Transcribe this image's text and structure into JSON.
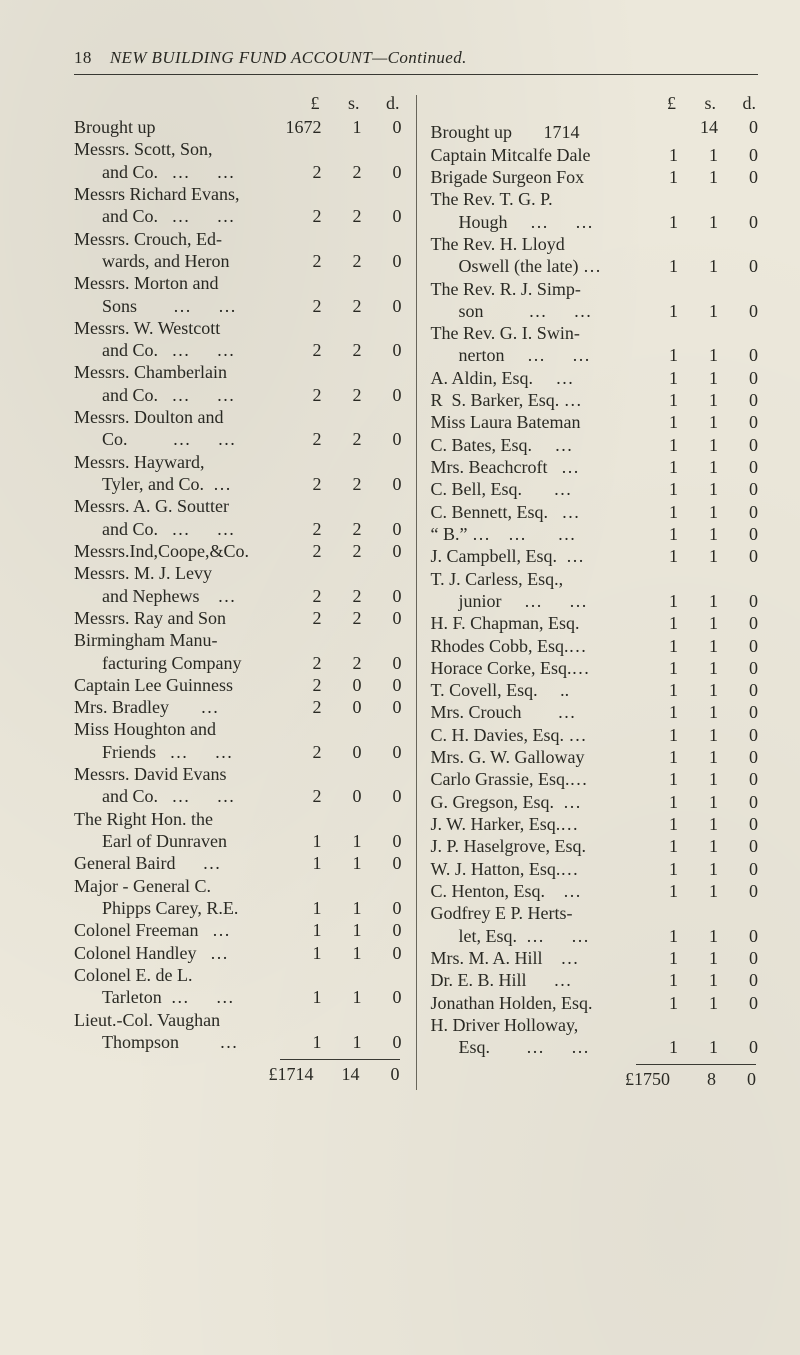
{
  "page_bg": "#ece8db",
  "text_color": "#2a2a24",
  "rule_color": "#3a3a34",
  "header": {
    "page_number": "18",
    "title_html": "NEW BUILDING FUND ACCOUNT—Continued."
  },
  "amount_header": {
    "pound": "£",
    "s": "s.",
    "d": "d."
  },
  "left": {
    "entries": [
      {
        "label": "Brought up",
        "pound": "1672",
        "s": "1",
        "d": "0"
      },
      {
        "cont": "Messrs. Scott, Son,"
      },
      {
        "label": "  and Co.   …      …",
        "pound": "2",
        "s": "2",
        "d": "0"
      },
      {
        "cont": "Messrs Richard Evans,"
      },
      {
        "label": "  and Co.   …      …",
        "pound": "2",
        "s": "2",
        "d": "0"
      },
      {
        "cont": "Messrs.  Crouch, Ed-"
      },
      {
        "label": "  wards, and Heron",
        "pound": "2",
        "s": "2",
        "d": "0"
      },
      {
        "cont": "Messrs. Morton and"
      },
      {
        "label": "  Sons        …      …",
        "pound": "2",
        "s": "2",
        "d": "0"
      },
      {
        "cont": "Messrs. W. Westcott"
      },
      {
        "label": "  and Co.   …      …",
        "pound": "2",
        "s": "2",
        "d": "0"
      },
      {
        "cont": "Messrs. Chamberlain"
      },
      {
        "label": "  and Co.   …      …",
        "pound": "2",
        "s": "2",
        "d": "0"
      },
      {
        "cont": "Messrs. Doulton and"
      },
      {
        "label": "  Co.          …      …",
        "pound": "2",
        "s": "2",
        "d": "0"
      },
      {
        "cont": "Messrs.     Hayward,"
      },
      {
        "label": "  Tyler, and Co.  …",
        "pound": "2",
        "s": "2",
        "d": "0"
      },
      {
        "cont": "Messrs. A. G. Soutter"
      },
      {
        "label": "  and Co.   …      …",
        "pound": "2",
        "s": "2",
        "d": "0"
      },
      {
        "label": "Messrs.Ind,Coope,&Co.",
        "pound": "2",
        "s": "2",
        "d": "0"
      },
      {
        "cont": "Messrs. M. J. Levy"
      },
      {
        "label": "  and Nephews    …",
        "pound": "2",
        "s": "2",
        "d": "0"
      },
      {
        "label": "Messrs. Ray and Son",
        "pound": "2",
        "s": "2",
        "d": "0"
      },
      {
        "cont": "Birmingham   Manu-"
      },
      {
        "label": "  facturing Company",
        "pound": "2",
        "s": "2",
        "d": "0"
      },
      {
        "label": "Captain Lee Guinness",
        "pound": "2",
        "s": "0",
        "d": "0"
      },
      {
        "label": "Mrs. Bradley       …",
        "pound": "2",
        "s": "0",
        "d": "0"
      },
      {
        "cont": "Miss Houghton  and"
      },
      {
        "label": "  Friends   …      …",
        "pound": "2",
        "s": "0",
        "d": "0"
      },
      {
        "cont": "Messrs. David Evans"
      },
      {
        "label": "  and Co.   …      …",
        "pound": "2",
        "s": "0",
        "d": "0"
      },
      {
        "cont": "The Right Hon. the"
      },
      {
        "label": "  Earl of Dunraven",
        "pound": "1",
        "s": "1",
        "d": "0"
      },
      {
        "label": "General Baird      …",
        "pound": "1",
        "s": "1",
        "d": "0"
      },
      {
        "cont": "Major - General   C."
      },
      {
        "label": "  Phipps Carey, R.E.",
        "pound": "1",
        "s": "1",
        "d": "0"
      },
      {
        "label": "Colonel Freeman   …",
        "pound": "1",
        "s": "1",
        "d": "0"
      },
      {
        "label": "Colonel Handley   …",
        "pound": "1",
        "s": "1",
        "d": "0"
      },
      {
        "cont": "Colonel  E.  de  L."
      },
      {
        "label": "  Tarleton  …      …",
        "pound": "1",
        "s": "1",
        "d": "0"
      },
      {
        "cont": "Lieut.-Col. Vaughan"
      },
      {
        "label": "  Thompson         …",
        "pound": "1",
        "s": "1",
        "d": "0"
      }
    ],
    "total": {
      "label": "£1714",
      "s": "14",
      "d": "0"
    }
  },
  "right": {
    "entries": [
      {
        "label": "Brought up       1714",
        "pound": "",
        "s": "14",
        "d": "0",
        "pound_in_label": true
      },
      {
        "label": "Captain Mitcalfe Dale",
        "pound": "1",
        "s": "1",
        "d": "0"
      },
      {
        "label": "Brigade Surgeon Fox",
        "pound": "1",
        "s": "1",
        "d": "0"
      },
      {
        "cont": "The Rev. T. G. P."
      },
      {
        "label": "  Hough     …      …",
        "pound": "1",
        "s": "1",
        "d": "0"
      },
      {
        "cont": "The Rev. H. Lloyd"
      },
      {
        "label": "  Oswell (the late) …",
        "pound": "1",
        "s": "1",
        "d": "0"
      },
      {
        "cont": "The Rev. R. J. Simp-"
      },
      {
        "label": "  son          …      …",
        "pound": "1",
        "s": "1",
        "d": "0"
      },
      {
        "cont": "The Rev. G. I. Swin-"
      },
      {
        "label": "  nerton     …      …",
        "pound": "1",
        "s": "1",
        "d": "0"
      },
      {
        "label": "A. Aldin, Esq.     …",
        "pound": "1",
        "s": "1",
        "d": "0"
      },
      {
        "label": "R  S. Barker, Esq. …",
        "pound": "1",
        "s": "1",
        "d": "0"
      },
      {
        "label": "Miss Laura Bateman",
        "pound": "1",
        "s": "1",
        "d": "0"
      },
      {
        "label": "C. Bates, Esq.     …",
        "pound": "1",
        "s": "1",
        "d": "0"
      },
      {
        "label": "Mrs. Beachcroft   …",
        "pound": "1",
        "s": "1",
        "d": "0"
      },
      {
        "label": "C. Bell, Esq.       …",
        "pound": "1",
        "s": "1",
        "d": "0"
      },
      {
        "label": "C. Bennett, Esq.   …",
        "pound": "1",
        "s": "1",
        "d": "0"
      },
      {
        "label": "“ B.” …    …       …",
        "pound": "1",
        "s": "1",
        "d": "0"
      },
      {
        "label": "J. Campbell, Esq.  …",
        "pound": "1",
        "s": "1",
        "d": "0"
      },
      {
        "cont": "T. J. Carless, Esq.,"
      },
      {
        "label": "  junior     …      …",
        "pound": "1",
        "s": "1",
        "d": "0"
      },
      {
        "label": "H. F. Chapman, Esq.",
        "pound": "1",
        "s": "1",
        "d": "0"
      },
      {
        "label": "Rhodes Cobb, Esq.…",
        "pound": "1",
        "s": "1",
        "d": "0"
      },
      {
        "label": "Horace Corke, Esq.…",
        "pound": "1",
        "s": "1",
        "d": "0"
      },
      {
        "label": "T. Covell, Esq.     ..",
        "pound": "1",
        "s": "1",
        "d": "0"
      },
      {
        "label": "Mrs. Crouch        …",
        "pound": "1",
        "s": "1",
        "d": "0"
      },
      {
        "label": "C. H. Davies, Esq. …",
        "pound": "1",
        "s": "1",
        "d": "0"
      },
      {
        "label": "Mrs. G. W. Galloway",
        "pound": "1",
        "s": "1",
        "d": "0"
      },
      {
        "label": "Carlo Grassie, Esq.…",
        "pound": "1",
        "s": "1",
        "d": "0"
      },
      {
        "label": "G. Gregson, Esq.  …",
        "pound": "1",
        "s": "1",
        "d": "0"
      },
      {
        "label": "J. W. Harker, Esq.…",
        "pound": "1",
        "s": "1",
        "d": "0"
      },
      {
        "label": "J. P. Haselgrove, Esq.",
        "pound": "1",
        "s": "1",
        "d": "0"
      },
      {
        "label": "W. J. Hatton, Esq.…",
        "pound": "1",
        "s": "1",
        "d": "0"
      },
      {
        "label": "C. Henton, Esq.    …",
        "pound": "1",
        "s": "1",
        "d": "0"
      },
      {
        "cont": "Godfrey E P. Herts-"
      },
      {
        "label": "  let, Esq.  …      …",
        "pound": "1",
        "s": "1",
        "d": "0"
      },
      {
        "label": "Mrs. M. A. Hill    …",
        "pound": "1",
        "s": "1",
        "d": "0"
      },
      {
        "label": "Dr. E. B. Hill      …",
        "pound": "1",
        "s": "1",
        "d": "0"
      },
      {
        "label": "Jonathan Holden, Esq.",
        "pound": "1",
        "s": "1",
        "d": "0"
      },
      {
        "cont": "H. Driver Holloway,"
      },
      {
        "label": "  Esq.        …      …",
        "pound": "1",
        "s": "1",
        "d": "0"
      }
    ],
    "total": {
      "label": "£1750",
      "s": "8",
      "d": "0"
    }
  }
}
